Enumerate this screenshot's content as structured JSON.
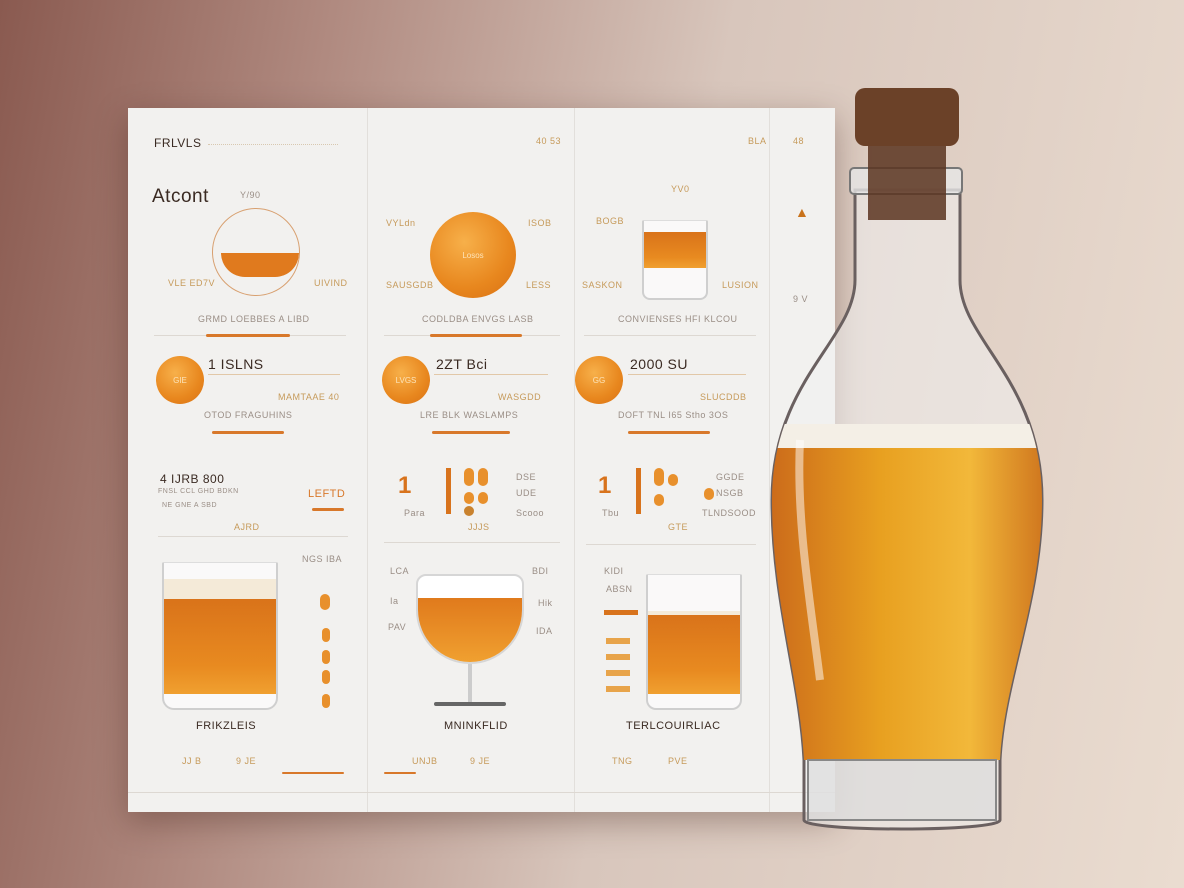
{
  "header": {
    "left_label": "FRLVLS",
    "col2_label": "40 53",
    "col3_label": "BLA",
    "col4_label": "48"
  },
  "col1": {
    "title": "Atcont",
    "tiny": "Y/90",
    "left_label": "VLE ED7V",
    "right_label": "UIVIND",
    "caption": "GRMD LOEBBES A LIBD",
    "stat_value": "1 ISLNS",
    "stat_disc": "GIE",
    "stat_sub": "MAMTAAE 40",
    "stat_caption": "OTOD FRAGUHINS",
    "num_title": "4 IJRB 800",
    "num_line1": "FNSL CCL GHD BDKN",
    "num_line2": "NE GNE A SBD",
    "num_badge": "LEFTD",
    "num_caption": "AJRD",
    "glass_title": "NGS IBA",
    "glass_name": "FRIKZLEIS",
    "foot1": "JJ B",
    "foot2": "9 JE"
  },
  "col2": {
    "left_label": "VYLdn",
    "right_label": "ISOB",
    "disc_label": "Losos",
    "bottom_left": "SAUSGDB",
    "bottom_right": "LESS",
    "caption": "CODLDBA ENVGS LASB",
    "stat_value": "2ZT Bci",
    "stat_disc": "LVGS",
    "stat_sub": "WASGDD",
    "stat_caption": "LRE BLK  WASLAMPS",
    "num": "1",
    "num_small": "Para",
    "num_r1": "DSE",
    "num_r2": "UDE",
    "num_r3": "Scooo",
    "num_caption": "JJJS",
    "glass_l1": "LCA",
    "glass_l2": "Ia",
    "glass_l3": "PAV",
    "glass_r1": "BDI",
    "glass_r2": "Hik",
    "glass_r3": "IDA",
    "glass_name": "MNINKFLID",
    "foot1": "UNJB",
    "foot2": "9 JE"
  },
  "col3": {
    "top_label": "YV0",
    "left_label": "BOGB",
    "bottom_left": "SASKON",
    "bottom_right": "LUSION",
    "caption": "CONVIENSES HFI KLCOU",
    "stat_value": "2000 SU",
    "stat_disc": "GG",
    "stat_sub": "SLUCDDB",
    "stat_caption": "DOFT TNL  I65 Stho 3OS",
    "num": "1",
    "num_small": "Tbu",
    "num_r1": "GGDE",
    "num_r2": "NSGB",
    "num_r3": "TLNDSOOD",
    "num_caption": "GTE",
    "glass_l1": "KIDI",
    "glass_l2": "ABSN",
    "glass_name": "TERLCOUIRLIAC",
    "foot1": "TNG",
    "foot2": "PVE"
  },
  "col4": {
    "label": "9 V"
  },
  "colors": {
    "accent": "#e8871e",
    "beer": "#d9731a",
    "background": "#eadcd0",
    "cork": "#6b4128"
  }
}
